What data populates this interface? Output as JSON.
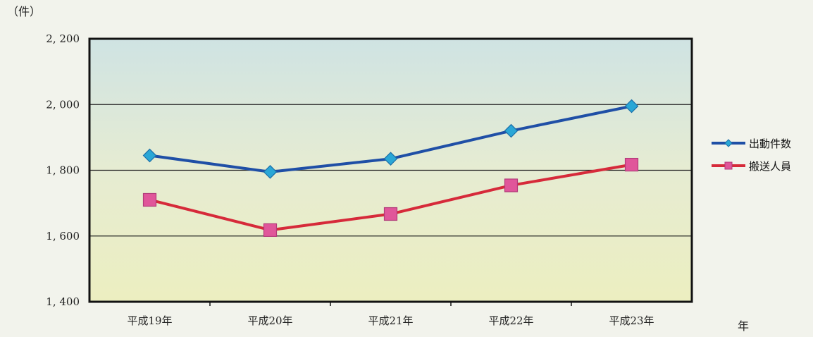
{
  "chart_data": {
    "type": "line",
    "y_unit": "（件）",
    "x_unit": "年",
    "categories": [
      "平成19年",
      "平成20年",
      "平成21年",
      "平成22年",
      "平成23年"
    ],
    "ylim": [
      1400,
      2200
    ],
    "yticks": [
      1400,
      1600,
      1800,
      2000,
      2200
    ],
    "ytick_labels": [
      "1, 400",
      "1, 600",
      "1, 800",
      "2, 000",
      "2, 200"
    ],
    "grid": true,
    "legend_position": "right",
    "series": [
      {
        "name": "出動件数",
        "values": [
          1845,
          1795,
          1835,
          1920,
          1995
        ],
        "color": "#1f4fa6",
        "marker": "diamond",
        "marker_color": "#2aa7d6"
      },
      {
        "name": "搬送人員",
        "values": [
          1710,
          1618,
          1667,
          1754,
          1817
        ],
        "color": "#d62a3a",
        "marker": "square",
        "marker_color": "#e0569a"
      }
    ]
  }
}
